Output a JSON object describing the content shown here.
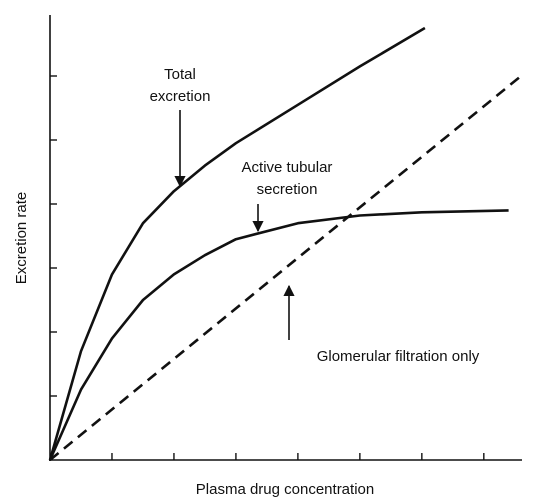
{
  "chart_data": {
    "type": "line",
    "xlabel": "Plasma drug concentration",
    "ylabel": "Excretion rate",
    "xlim": [
      0,
      7.6
    ],
    "ylim": [
      0,
      7
    ],
    "xticks": [
      1,
      2,
      3,
      4,
      5,
      6,
      7
    ],
    "yticks": [
      1,
      2,
      3,
      4,
      5,
      6
    ],
    "series": [
      {
        "name": "Total excretion",
        "color": "#111111",
        "style": "solid",
        "x": [
          0,
          0.5,
          1,
          1.5,
          2,
          2.5,
          3,
          4,
          5,
          6.05
        ],
        "values": [
          0,
          1.7,
          2.9,
          3.7,
          4.2,
          4.6,
          4.95,
          5.55,
          6.15,
          6.75
        ]
      },
      {
        "name": "Active tubular secretion",
        "color": "#111111",
        "style": "solid",
        "x": [
          0,
          0.5,
          1,
          1.5,
          2,
          2.5,
          3,
          4,
          5,
          6,
          7.4
        ],
        "values": [
          0,
          1.1,
          1.9,
          2.5,
          2.9,
          3.2,
          3.45,
          3.7,
          3.82,
          3.87,
          3.9
        ]
      },
      {
        "name": "Glomerular filtration only",
        "color": "#111111",
        "style": "dashed",
        "x": [
          0,
          7.6
        ],
        "values": [
          0,
          6.0
        ]
      }
    ],
    "annotations": [
      {
        "lines": [
          "Total",
          "excretion"
        ]
      },
      {
        "lines": [
          "Active tubular",
          "secretion"
        ]
      },
      {
        "lines": [
          "Glomerular filtration only"
        ]
      }
    ]
  }
}
